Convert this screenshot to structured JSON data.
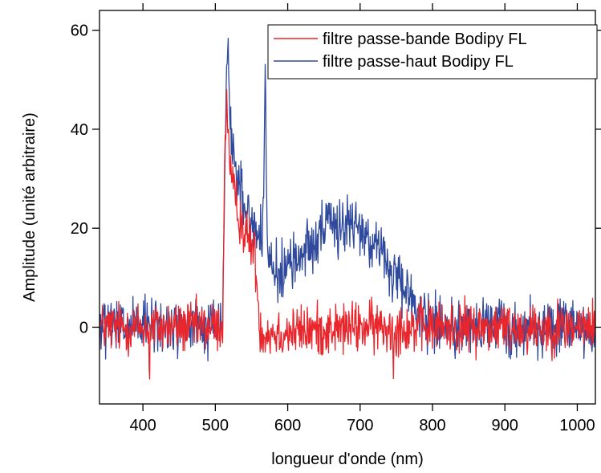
{
  "chart_data": {
    "type": "line",
    "xlabel": "longueur d'onde (nm)",
    "ylabel": "Amplitude (unité arbitraire)",
    "xlim": [
      340,
      1025
    ],
    "ylim": [
      -15.5,
      64
    ],
    "x_ticks": [
      400,
      500,
      600,
      700,
      800,
      900,
      1000
    ],
    "y_ticks": [
      0,
      20,
      40,
      60
    ],
    "grid": false,
    "legend_position": "top-right",
    "noise_note_hidden": true,
    "series": [
      {
        "name": "filtre passe-bande Bodipy FL",
        "color": "#e8262c",
        "noise_amplitude": 2.6,
        "anchors": {
          "x": [
            340,
            408,
            409,
            410,
            505,
            510,
            513,
            516,
            520,
            525,
            530,
            535,
            540,
            545,
            550,
            555,
            560,
            563,
            568,
            600,
            700,
            745,
            746,
            747,
            800,
            900,
            1025
          ],
          "y": [
            0,
            0,
            -15,
            0,
            0,
            0,
            35,
            47,
            32,
            27,
            24,
            22,
            19,
            18,
            17,
            14,
            3,
            -1,
            -1,
            -1,
            0,
            0,
            -9,
            0,
            0,
            0,
            0
          ]
        }
      },
      {
        "name": "filtre passe-haut Bodipy FL",
        "color": "#2f4a9c",
        "noise_amplitude": 2.8,
        "anchors": {
          "x": [
            340,
            505,
            510,
            513,
            515,
            517,
            520,
            525,
            530,
            535,
            540,
            545,
            550,
            555,
            560,
            566,
            568,
            569,
            570,
            572,
            580,
            600,
            620,
            650,
            680,
            710,
            730,
            750,
            780,
            800,
            830,
            900,
            1025
          ],
          "y": [
            0,
            0,
            1,
            30,
            48,
            60,
            42,
            35,
            30,
            28,
            26,
            23,
            21,
            20,
            19,
            18,
            42,
            52,
            40,
            14,
            11,
            12,
            15,
            20,
            21,
            19,
            15,
            9,
            4,
            1,
            0,
            0,
            0
          ]
        }
      }
    ]
  }
}
